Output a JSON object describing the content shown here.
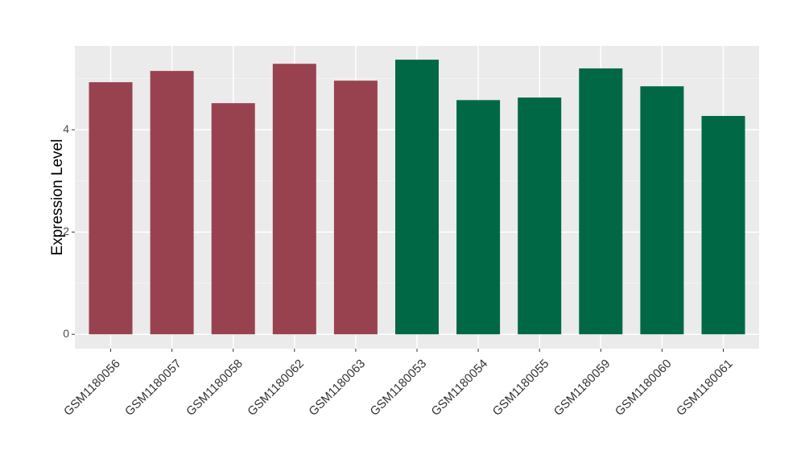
{
  "chart_data": {
    "type": "bar",
    "y_label": "Expression Level",
    "categories": [
      "GSM1180056",
      "GSM1180057",
      "GSM1180058",
      "GSM1180062",
      "GSM1180063",
      "GSM1180053",
      "GSM1180054",
      "GSM1180055",
      "GSM1180059",
      "GSM1180060",
      "GSM1180061"
    ],
    "values": [
      4.93,
      5.15,
      4.52,
      5.29,
      4.96,
      5.37,
      4.58,
      4.63,
      5.2,
      4.85,
      4.27
    ],
    "colors": [
      "#99424f",
      "#99424f",
      "#99424f",
      "#99424f",
      "#99424f",
      "#006845",
      "#006845",
      "#006845",
      "#006845",
      "#006845",
      "#006845"
    ],
    "ylim": [
      -0.28,
      5.64
    ],
    "yticks": [
      0,
      2,
      4
    ],
    "grid": true
  }
}
